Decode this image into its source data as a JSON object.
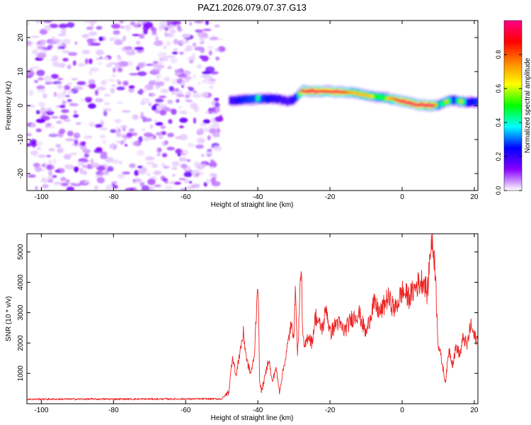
{
  "title": "PAZ1.2026.079.07.37.G13",
  "chart_data": [
    {
      "type": "heatmap",
      "xlabel": "Height of straight line (km)",
      "ylabel": "Frequency (Hz)",
      "xlim": [
        -104,
        21
      ],
      "ylim": [
        -25,
        25
      ],
      "xticks": [
        -100,
        -80,
        -60,
        -40,
        -20,
        0,
        20
      ],
      "yticks": [
        -20,
        -10,
        0,
        10,
        20
      ],
      "noise_region_x": [
        -104,
        -50
      ],
      "signal_ridge": {
        "x": [
          -48,
          -45,
          -40,
          -36,
          -34,
          -32,
          -30,
          -28,
          -26,
          -22,
          -18,
          -14,
          -10,
          -6,
          -2,
          0,
          4,
          8,
          10,
          12,
          14,
          16,
          18,
          21
        ],
        "freq_hz": [
          1.5,
          1.6,
          2.0,
          2.0,
          1.8,
          1.2,
          2.0,
          4.2,
          4.3,
          4.2,
          4.0,
          3.8,
          3.0,
          2.4,
          1.8,
          1.2,
          0.2,
          0.0,
          0.3,
          1.2,
          1.6,
          1.2,
          1.0,
          1.0
        ],
        "amplitude": [
          0.25,
          0.45,
          0.55,
          0.35,
          0.3,
          0.25,
          0.4,
          0.8,
          0.95,
          0.85,
          0.9,
          0.7,
          0.7,
          0.6,
          0.8,
          0.95,
          0.9,
          0.95,
          0.5,
          0.7,
          0.45,
          0.7,
          0.4,
          0.5
        ]
      },
      "colorbar": {
        "label": "Normalized spectral amplitude",
        "range": [
          0,
          1
        ],
        "ticks": [
          "0.0",
          "0.2",
          "0.4",
          "0.6",
          "0.8"
        ],
        "tick_values": [
          0,
          0.2,
          0.4,
          0.6,
          0.8
        ],
        "stops": [
          "#ffffff",
          "#8800ff",
          "#0000ff",
          "#00ffff",
          "#00ff00",
          "#ffff00",
          "#ff8800",
          "#ff0000",
          "#ff0088"
        ]
      }
    },
    {
      "type": "line",
      "xlabel": "Height of straight line (km)",
      "ylabel": "SNR (10 * v/v)",
      "xlim": [
        -104,
        21
      ],
      "ylim": [
        0,
        5600
      ],
      "xticks": [
        -100,
        -80,
        -60,
        -40,
        -20,
        0,
        20
      ],
      "yticks": [
        1000,
        2000,
        3000,
        4000,
        5000
      ],
      "color": "#ee2222",
      "series": [
        {
          "name": "SNR",
          "x": [
            -104,
            -50,
            -48,
            -47,
            -46,
            -45,
            -44,
            -43,
            -42,
            -41,
            -40.5,
            -40,
            -39.5,
            -39,
            -38,
            -37,
            -36,
            -35,
            -34,
            -33,
            -32,
            -31,
            -30,
            -29.5,
            -29,
            -28.5,
            -28,
            -27.5,
            -27,
            -26,
            -25,
            -24,
            -23,
            -22,
            -21,
            -20,
            -18,
            -16,
            -14,
            -12,
            -10,
            -8,
            -6,
            -4,
            -2,
            0,
            2,
            4,
            6,
            7,
            8,
            9,
            10,
            11,
            12,
            13,
            14,
            15,
            16,
            17,
            18,
            19,
            20,
            21
          ],
          "y": [
            150,
            160,
            400,
            1600,
            900,
            1700,
            2300,
            1400,
            1000,
            1500,
            2800,
            4200,
            800,
            400,
            900,
            1500,
            700,
            1200,
            400,
            1100,
            1700,
            2500,
            2400,
            3800,
            1500,
            3000,
            4700,
            2100,
            1800,
            2300,
            2000,
            2900,
            2600,
            2500,
            3200,
            2300,
            2700,
            2400,
            2800,
            3000,
            2300,
            3300,
            3000,
            3500,
            3100,
            3700,
            3500,
            3900,
            4100,
            3600,
            5400,
            4800,
            2000,
            1400,
            700,
            1800,
            1300,
            1900,
            1600,
            2200,
            1900,
            2600,
            2200,
            2100
          ]
        }
      ]
    }
  ]
}
